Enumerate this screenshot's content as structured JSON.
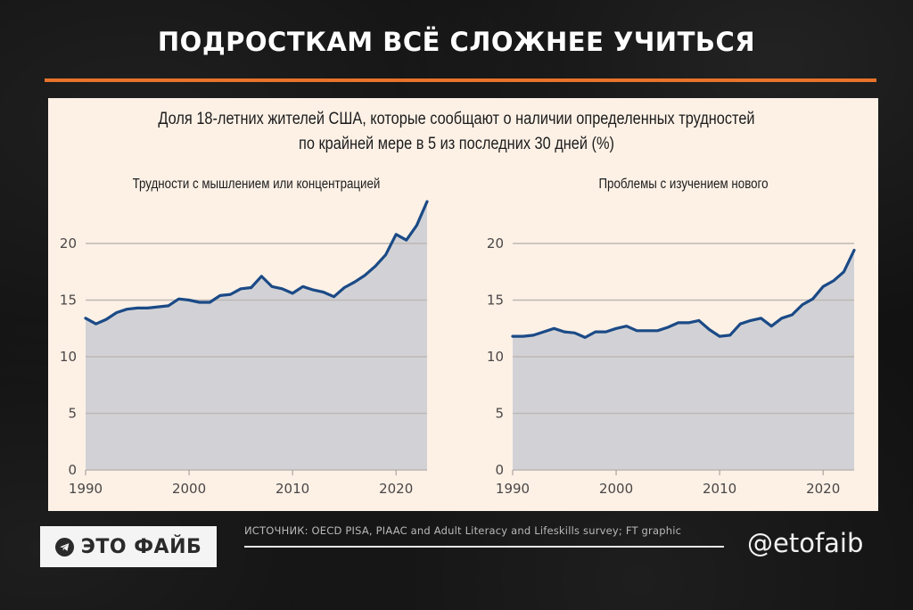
{
  "header": {
    "title": "ПОДРОСТКАМ ВСЁ СЛОЖНЕЕ УЧИТЬСЯ",
    "accent_color": "#e8732a"
  },
  "chart_header": {
    "line1": "Доля 18-летних жителей США, которые сообщают о наличии определенных трудностей",
    "line2": "по крайней мере в 5 из последних 30 дней (%)"
  },
  "chart_data": [
    {
      "type": "area",
      "title": "Трудности с мышлением или концентрацией",
      "xlabel": "",
      "ylabel": "%",
      "x": [
        1990,
        1991,
        1992,
        1993,
        1994,
        1995,
        1996,
        1997,
        1998,
        1999,
        2000,
        2001,
        2002,
        2003,
        2004,
        2005,
        2006,
        2007,
        2008,
        2009,
        2010,
        2011,
        2012,
        2013,
        2014,
        2015,
        2016,
        2017,
        2018,
        2019,
        2020,
        2021,
        2022,
        2023
      ],
      "values": [
        13.4,
        12.9,
        13.3,
        13.9,
        14.2,
        14.3,
        14.3,
        14.4,
        14.5,
        15.1,
        15.0,
        14.8,
        14.8,
        15.4,
        15.5,
        16.0,
        16.1,
        17.1,
        16.2,
        16.0,
        15.6,
        16.2,
        15.9,
        15.7,
        15.3,
        16.1,
        16.6,
        17.2,
        18.0,
        19.0,
        20.8,
        20.3,
        21.6,
        23.7
      ],
      "xticks": [
        1990,
        2000,
        2010,
        2020
      ],
      "yticks": [
        0,
        5,
        10,
        15,
        20
      ],
      "xlim": [
        1990,
        2023
      ],
      "ylim": [
        0,
        24
      ],
      "grid": true,
      "line_color": "#1b4a86",
      "fill_color": "#d2d2d6"
    },
    {
      "type": "area",
      "title": "Проблемы с изучением нового",
      "xlabel": "",
      "ylabel": "%",
      "x": [
        1990,
        1991,
        1992,
        1993,
        1994,
        1995,
        1996,
        1997,
        1998,
        1999,
        2000,
        2001,
        2002,
        2003,
        2004,
        2005,
        2006,
        2007,
        2008,
        2009,
        2010,
        2011,
        2012,
        2013,
        2014,
        2015,
        2016,
        2017,
        2018,
        2019,
        2020,
        2021,
        2022,
        2023
      ],
      "values": [
        11.8,
        11.8,
        11.9,
        12.2,
        12.5,
        12.2,
        12.1,
        11.7,
        12.2,
        12.2,
        12.5,
        12.7,
        12.3,
        12.3,
        12.3,
        12.6,
        13.0,
        13.0,
        13.2,
        12.4,
        11.8,
        11.9,
        12.9,
        13.2,
        13.4,
        12.7,
        13.4,
        13.7,
        14.6,
        15.1,
        16.2,
        16.7,
        17.5,
        19.4
      ],
      "xticks": [
        1990,
        2000,
        2010,
        2020
      ],
      "yticks": [
        0,
        5,
        10,
        15,
        20
      ],
      "xlim": [
        1990,
        2023
      ],
      "ylim": [
        0,
        24
      ],
      "grid": true,
      "line_color": "#1b4a86",
      "fill_color": "#d2d2d6"
    }
  ],
  "footer": {
    "brand": "ЭТО ФАЙБ",
    "brand_icon": "telegram-icon",
    "source": "ИСТОЧНИК: OECD PISA, PIAAC and Adult Literacy and Lifeskills survey; FT graphic",
    "handle": "@etofaib"
  }
}
